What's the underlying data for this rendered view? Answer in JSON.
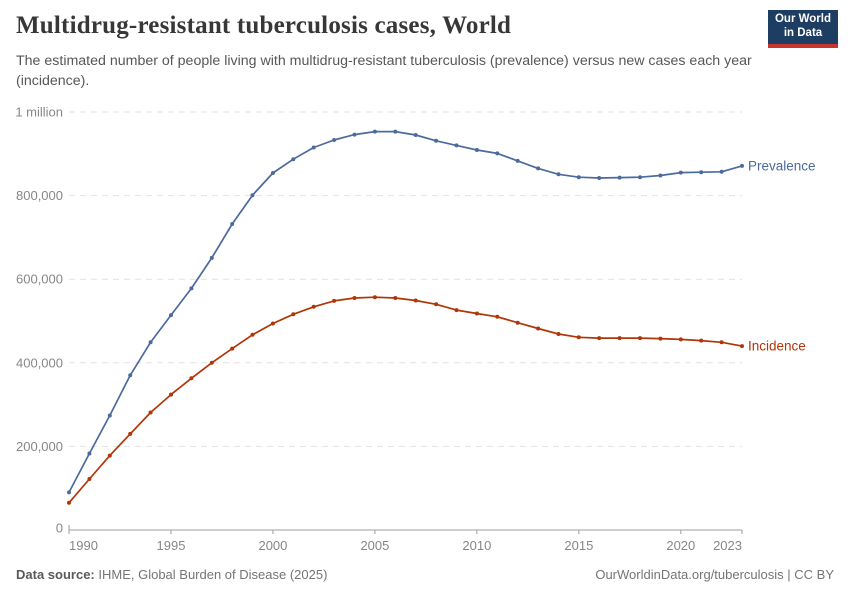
{
  "header": {
    "title": "Multidrug-resistant tuberculosis cases, World",
    "subtitle": "The estimated number of people living with multidrug-resistant tuberculosis (prevalence) versus new cases each year (incidence).",
    "logo": {
      "line1": "Our World",
      "line2": "in Data",
      "bg_color": "#1d3d63",
      "stripe_color": "#c7352c"
    }
  },
  "footer": {
    "source_label": "Data source:",
    "source_text": " IHME, Global Burden of Disease (2025)",
    "credit": "OurWorldinData.org/tuberculosis | CC BY"
  },
  "chart_data": {
    "type": "line",
    "title": "Multidrug-resistant tuberculosis cases, World",
    "x": [
      1990,
      1991,
      1992,
      1993,
      1994,
      1995,
      1996,
      1997,
      1998,
      1999,
      2000,
      2001,
      2002,
      2003,
      2004,
      2005,
      2006,
      2007,
      2008,
      2009,
      2010,
      2011,
      2012,
      2013,
      2014,
      2015,
      2016,
      2017,
      2018,
      2019,
      2020,
      2021,
      2022,
      2023
    ],
    "series": [
      {
        "name": "Prevalence",
        "color": "#4c6a9c",
        "values": [
          90000,
          183000,
          274000,
          370000,
          449000,
          514000,
          578000,
          651000,
          732000,
          801000,
          854000,
          887000,
          915000,
          933000,
          946000,
          953000,
          953000,
          945000,
          931000,
          920000,
          909000,
          901000,
          883000,
          865000,
          851000,
          844000,
          842000,
          843000,
          844000,
          848000,
          855000,
          856000,
          857000,
          871000
        ]
      },
      {
        "name": "Incidence",
        "color": "#b13507",
        "values": [
          65000,
          122000,
          178000,
          230000,
          281000,
          324000,
          363000,
          400000,
          434000,
          467000,
          494000,
          516000,
          534000,
          548000,
          555000,
          557000,
          555000,
          549000,
          540000,
          526000,
          518000,
          510000,
          496000,
          482000,
          469000,
          461000,
          459000,
          459000,
          459000,
          458000,
          456000,
          453000,
          449000,
          440000
        ]
      }
    ],
    "xlabel": "",
    "ylabel": "",
    "ylim": [
      0,
      1000000
    ],
    "xlim": [
      1990,
      2023
    ],
    "y_ticks": [
      {
        "value": 0,
        "label": "0"
      },
      {
        "value": 200000,
        "label": "200,000"
      },
      {
        "value": 400000,
        "label": "400,000"
      },
      {
        "value": 600000,
        "label": "600,000"
      },
      {
        "value": 800000,
        "label": "800,000"
      },
      {
        "value": 1000000,
        "label": "1 million"
      }
    ],
    "x_ticks": [
      1990,
      1995,
      2000,
      2005,
      2010,
      2015,
      2020,
      2023
    ],
    "grid": "horizontal-dashed",
    "legend_position": "line-end-labels"
  },
  "chart_style": {
    "gridline_color": "#e2e2e2",
    "axis_color": "#9c9c9c",
    "tick_label_color": "#878787",
    "background": "#ffffff"
  }
}
